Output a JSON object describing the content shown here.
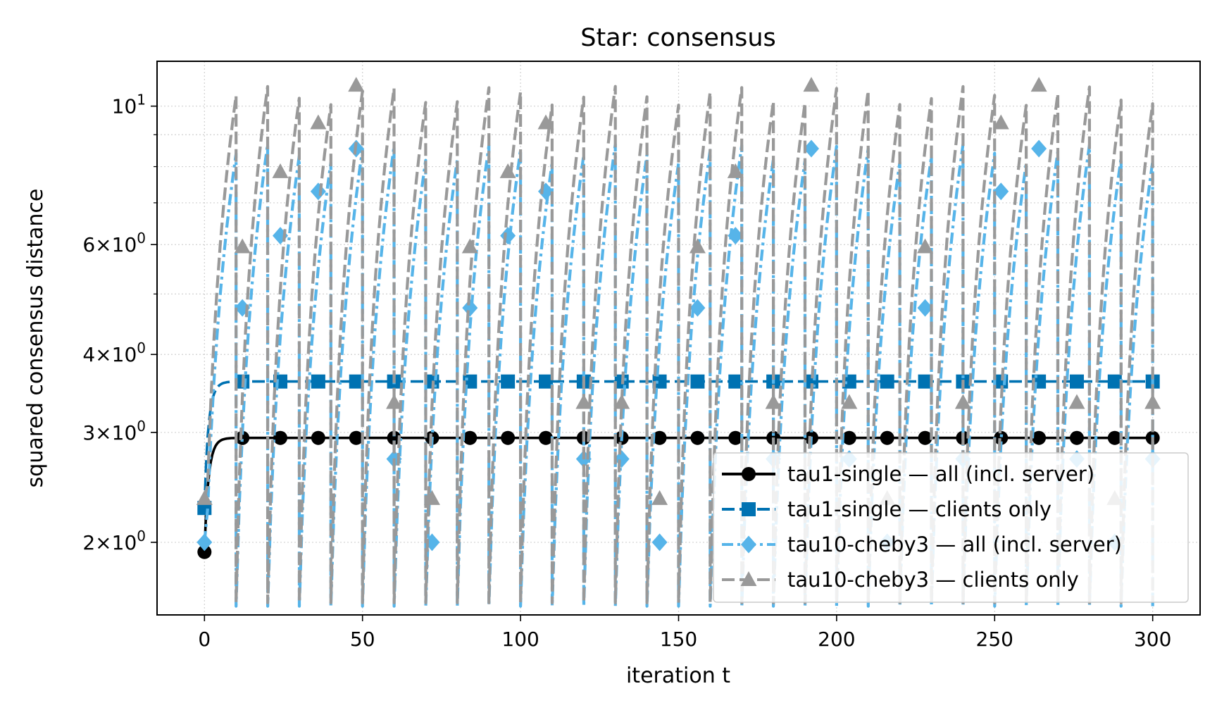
{
  "chart_data": {
    "type": "line",
    "title": "Star: consensus",
    "xlabel": "iteration t",
    "ylabel": "squared consensus distance",
    "xlim": [
      -15,
      315
    ],
    "ylim": [
      1.53,
      11.8
    ],
    "yscale": "log",
    "grid": true,
    "legend_position": "lower right",
    "x_ticks": [
      0,
      50,
      100,
      150,
      200,
      250,
      300
    ],
    "x_tick_labels": [
      "0",
      "50",
      "100",
      "150",
      "200",
      "250",
      "300"
    ],
    "y_ticks": [
      2,
      3,
      4,
      6,
      10
    ],
    "y_tick_labels": [
      {
        "coef": "2",
        "exp": "0"
      },
      {
        "coef": "3",
        "exp": "0"
      },
      {
        "coef": "4",
        "exp": "0"
      },
      {
        "coef": "6",
        "exp": "0"
      },
      {
        "coef": "",
        "exp": "1"
      }
    ],
    "series": [
      {
        "name": "tau1-single — all (incl. server)",
        "color": "#000000",
        "line_style": "solid",
        "marker": "circle",
        "kind": "saturating",
        "start": 1.93,
        "plateau": 2.94,
        "rate": 0.7,
        "marker_start": 0,
        "marker_every": 12
      },
      {
        "name": "tau1-single — clients only",
        "color": "#0072b2",
        "line_style": "dashed",
        "marker": "square",
        "kind": "saturating",
        "start": 2.27,
        "plateau": 3.62,
        "rate": 0.7,
        "marker_start": 0,
        "marker_every": 12
      },
      {
        "name": "tau10-cheby3 — all (incl. server)",
        "color": "#56b4e9",
        "line_style": "dashdot",
        "marker": "diamond",
        "kind": "sawtooth",
        "period": 10,
        "low": 1.58,
        "high": 8.4,
        "marker_start": 0,
        "marker_every": 12,
        "marker_values": [
          2.0,
          4.75,
          6.2,
          7.3,
          8.55,
          2.72
        ]
      },
      {
        "name": "tau10-cheby3 — clients only",
        "color": "#999999",
        "line_style": "dashed",
        "marker": "triangle",
        "kind": "sawtooth",
        "period": 10,
        "low": 1.6,
        "high": 10.4,
        "marker_start": 0,
        "marker_every": 12,
        "marker_values": [
          2.35,
          5.95,
          7.85,
          9.4,
          10.8,
          3.35
        ]
      }
    ]
  }
}
